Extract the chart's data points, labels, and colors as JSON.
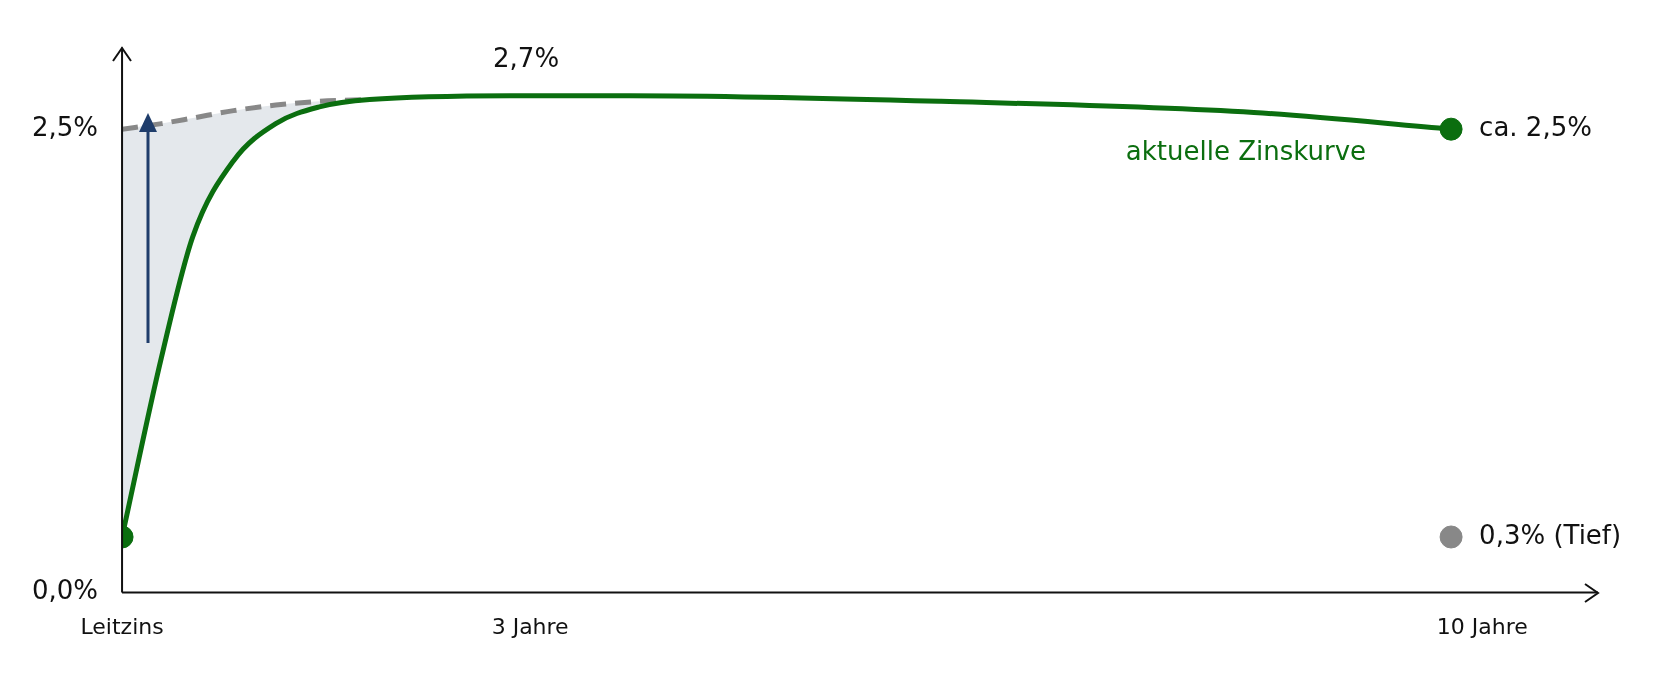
{
  "chart_data": {
    "type": "line",
    "xlim": [
      0,
      10.85
    ],
    "ylim": [
      0,
      2.94
    ],
    "xticks": [
      {
        "value": 0,
        "label": "Leitzins"
      },
      {
        "value": 3,
        "label": "3 Jahre"
      },
      {
        "value": 10,
        "label": "10 Jahre"
      }
    ],
    "yticks": [
      {
        "value": 0,
        "label": "0,0%"
      },
      {
        "value": 2.5,
        "label": "2,5%"
      }
    ],
    "grid": false,
    "legend": false,
    "series": [
      {
        "name": "aktuelle Zinskurve",
        "color": "#0b6e0f",
        "marker": "none",
        "line_style": "solid",
        "x": [
          0,
          0.29,
          0.52,
          0.82,
          1.13,
          1.45,
          1.82,
          2.97,
          3.73,
          6.02,
          8.32,
          9.77
        ],
        "values": [
          0.3,
          1.27,
          1.92,
          2.33,
          2.53,
          2.62,
          2.66,
          2.68,
          2.68,
          2.65,
          2.59,
          2.5
        ]
      },
      {
        "color": "#888888",
        "marker": "none",
        "line_style": "dashed",
        "x": [
          0,
          0.29,
          0.52,
          0.82,
          1.13,
          1.45,
          1.82
        ],
        "values": [
          2.5,
          2.53,
          2.56,
          2.6,
          2.63,
          2.65,
          2.66
        ],
        "upper": [
          2.5,
          2.53,
          2.56,
          2.6,
          2.63,
          2.65,
          2.66
        ],
        "lower": [
          0.3,
          1.27,
          1.92,
          2.33,
          2.53,
          2.62,
          2.66
        ]
      },
      {
        "type": "scatter",
        "color": "#0b6e0f",
        "marker": "circle",
        "x": [
          0,
          9.77
        ],
        "values": [
          0.3,
          2.5
        ]
      },
      {
        "type": "scatter",
        "name": "0,3% (Tief)",
        "color": "#888888",
        "marker": "circle",
        "x": [
          9.77
        ],
        "values": [
          0.3
        ]
      }
    ],
    "annotations": [
      {
        "text": "2,7%",
        "x": 2.97,
        "y": 2.68
      },
      {
        "text": "ca. 2,5%",
        "x": 9.77,
        "y": 2.5
      }
    ]
  }
}
